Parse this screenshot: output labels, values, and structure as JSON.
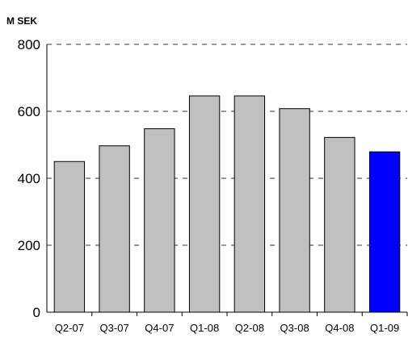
{
  "chart_data": {
    "type": "bar",
    "title": "",
    "unit_label": "M SEK",
    "xlabel": "",
    "ylabel": "",
    "categories": [
      "Q2-07",
      "Q3-07",
      "Q4-07",
      "Q1-08",
      "Q2-08",
      "Q3-08",
      "Q4-08",
      "Q1-09"
    ],
    "values": [
      450,
      497,
      548,
      646,
      646,
      608,
      522,
      479
    ],
    "ylim": [
      0,
      800
    ],
    "yticks": [
      0,
      200,
      400,
      600,
      800
    ],
    "grid": "dashed horizontal",
    "legend": "none",
    "colors": {
      "default_bar": "#c0c0c0",
      "highlight_bar": "#0000ff",
      "outline": "#000000",
      "grid": "#333333"
    },
    "highlight_index": 7
  }
}
